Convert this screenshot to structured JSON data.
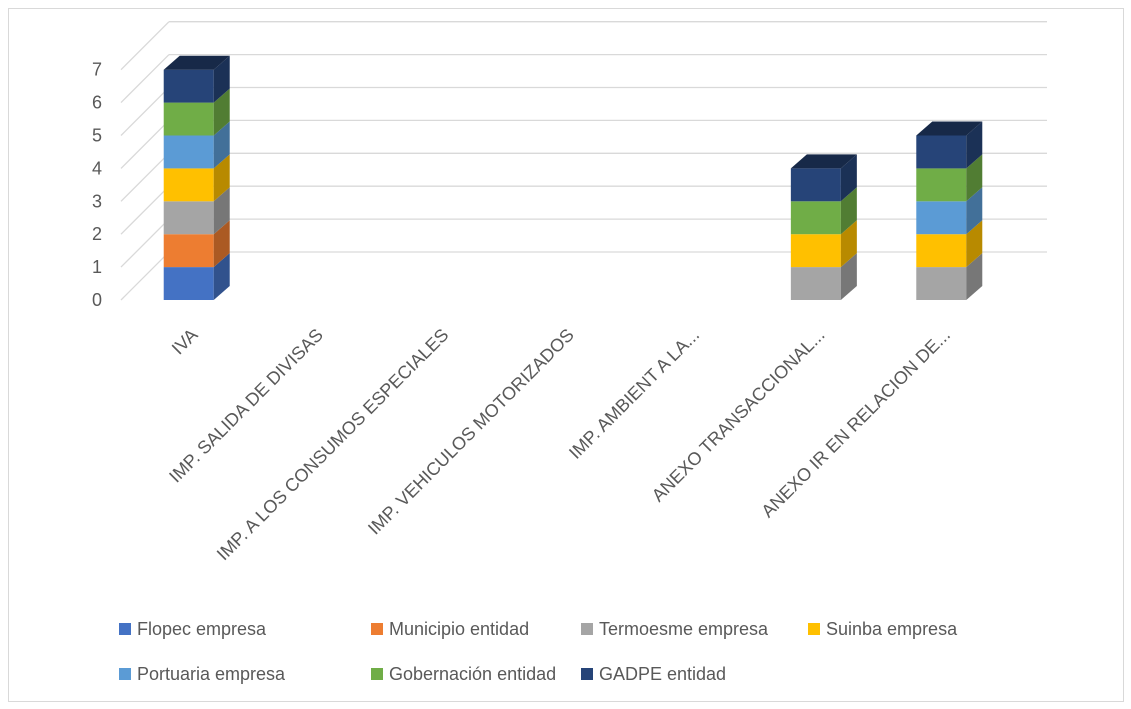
{
  "chart_data": {
    "type": "bar",
    "stacked": true,
    "three_d": true,
    "title": "",
    "xlabel": "",
    "ylabel": "",
    "ylim": [
      0,
      7
    ],
    "y_ticks": [
      0,
      1,
      2,
      3,
      4,
      5,
      6,
      7
    ],
    "grid": true,
    "legend_position": "bottom",
    "categories": [
      "IVA",
      "IMP. SALIDA DE  DIVISAS",
      "IMP. A LOS CONSUMOS ESPECIALES",
      "IMP. VEHICULOS MOTORIZADOS",
      "IMP. AMBIENT A LA...",
      "ANEXO TRANSACCIONAL...",
      "ANEXO IR EN RELACION DE..."
    ],
    "series": [
      {
        "name": "Flopec empresa",
        "color": "#4472C4",
        "values": [
          1,
          0,
          0,
          0,
          0,
          0,
          0
        ]
      },
      {
        "name": "Municipio entidad",
        "color": "#ED7D31",
        "values": [
          1,
          0,
          0,
          0,
          0,
          0,
          0
        ]
      },
      {
        "name": "Termoesme empresa",
        "color": "#A5A5A5",
        "values": [
          1,
          0,
          0,
          0,
          0,
          1,
          1
        ]
      },
      {
        "name": "Suinba empresa",
        "color": "#FFC000",
        "values": [
          1,
          0,
          0,
          0,
          0,
          1,
          1
        ]
      },
      {
        "name": "Portuaria empresa",
        "color": "#5B9BD5",
        "values": [
          1,
          0,
          0,
          0,
          0,
          0,
          1
        ]
      },
      {
        "name": "Gobernación entidad",
        "color": "#70AD47",
        "values": [
          1,
          0,
          0,
          0,
          0,
          1,
          1
        ]
      },
      {
        "name": "GADPE entidad",
        "color": "#264478",
        "values": [
          1,
          0,
          0,
          0,
          0,
          1,
          1
        ]
      }
    ]
  }
}
